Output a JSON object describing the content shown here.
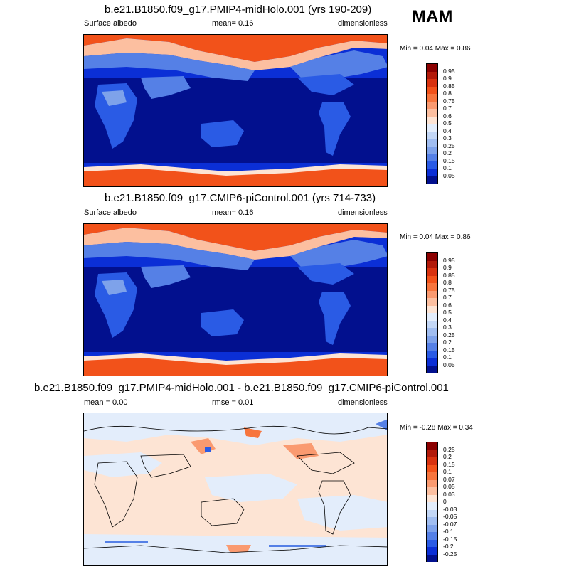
{
  "season": "MAM",
  "panels": [
    {
      "title": "b.e21.B1850.f09_g17.PMIP4-midHolo.001 (yrs 190-209)",
      "left": "Surface albedo",
      "center": "mean=   0.16",
      "right": "dimensionless",
      "minmax": "Min =   0.04 Max =   0.86",
      "kind": "albedo"
    },
    {
      "title": "b.e21.B1850.f09_g17.CMIP6-piControl.001 (yrs 714-733)",
      "left": "Surface albedo",
      "center": "mean=   0.16",
      "right": "dimensionless",
      "minmax": "Min =   0.04 Max =   0.86",
      "kind": "albedo"
    },
    {
      "title": "b.e21.B1850.f09_g17.PMIP4-midHolo.001 - b.e21.B1850.f09_g17.CMIP6-piControl.001",
      "left": "mean =   0.00",
      "center": "rmse =   0.01",
      "right": "dimensionless",
      "minmax": "Min =  -0.28 Max =   0.34",
      "kind": "diff"
    }
  ],
  "albedo_colorbar": {
    "labels": [
      "0.95",
      "0.9",
      "0.85",
      "0.8",
      "0.75",
      "0.7",
      "0.6",
      "0.5",
      "0.4",
      "0.3",
      "0.25",
      "0.2",
      "0.15",
      "0.1",
      "0.05"
    ],
    "colors": [
      "#8b0000",
      "#b21a0a",
      "#d8320f",
      "#f2521a",
      "#f7753d",
      "#fa9a70",
      "#fcbfa0",
      "#fde4d4",
      "#e3edfb",
      "#c3d7f6",
      "#a0bdf0",
      "#7ea2ea",
      "#5580e6",
      "#2a5be5",
      "#0b2fd6",
      "#02108e"
    ]
  },
  "diff_colorbar": {
    "labels": [
      "0.25",
      "0.2",
      "0.15",
      "0.1",
      "0.07",
      "0.05",
      "0.03",
      "0",
      "-0.03",
      "-0.05",
      "-0.07",
      "-0.1",
      "-0.15",
      "-0.2",
      "-0.25"
    ],
    "colors": [
      "#8b0000",
      "#b21a0a",
      "#d8320f",
      "#f2521a",
      "#f7753d",
      "#fa9a70",
      "#fcbfa0",
      "#fde4d4",
      "#e3edfb",
      "#c3d7f6",
      "#a0bdf0",
      "#7ea2ea",
      "#5580e6",
      "#2a5be5",
      "#0b2fd6",
      "#02108e"
    ]
  }
}
